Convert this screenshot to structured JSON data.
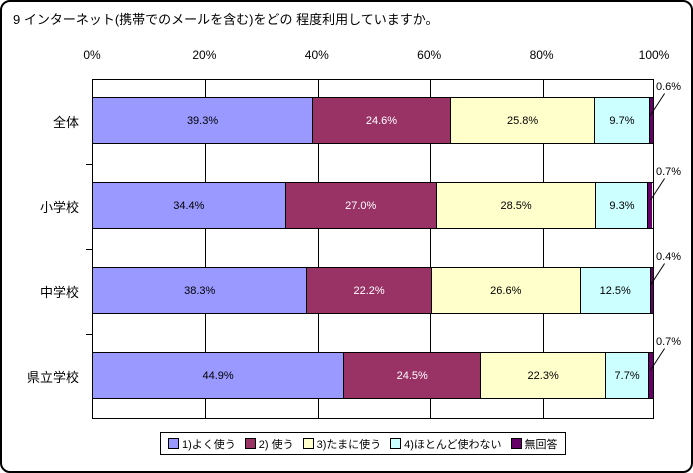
{
  "chart_data": {
    "type": "bar",
    "stacked": true,
    "orientation": "horizontal",
    "title": "9 インターネット(携帯でのメールを含む)をどの 程度利用していますか。",
    "categories": [
      "全体",
      "小学校",
      "中学校",
      "県立学校"
    ],
    "x_tick_labels": [
      "0%",
      "20%",
      "40%",
      "60%",
      "80%",
      "100%"
    ],
    "xlim": [
      0,
      100
    ],
    "grid": true,
    "legend_position": "bottom",
    "series": [
      {
        "name": "1)よく使う",
        "color": "#9999FF",
        "text_color": "#000000",
        "values": [
          39.3,
          34.4,
          38.3,
          44.9
        ],
        "labels": [
          "39.3%",
          "34.4%",
          "38.3%",
          "44.9%"
        ]
      },
      {
        "name": "2) 使う",
        "color": "#993366",
        "text_color": "#FFFFFF",
        "values": [
          24.6,
          27.0,
          22.2,
          24.5
        ],
        "labels": [
          "24.6%",
          "27.0%",
          "22.2%",
          "24.5%"
        ]
      },
      {
        "name": "3)たまに使う",
        "color": "#FFFFCC",
        "text_color": "#000000",
        "values": [
          25.8,
          28.5,
          26.6,
          22.3
        ],
        "labels": [
          "25.8%",
          "28.5%",
          "26.6%",
          "22.3%"
        ]
      },
      {
        "name": "4)ほとんど使わない",
        "color": "#CCFFFF",
        "text_color": "#000000",
        "values": [
          9.7,
          9.3,
          12.5,
          7.7
        ],
        "labels": [
          "9.7%",
          "9.3%",
          "12.5%",
          "7.7%"
        ]
      },
      {
        "name": "無回答",
        "color": "#660066",
        "text_color": "#000000",
        "values": [
          0.6,
          0.7,
          0.4,
          0.7
        ],
        "labels": [
          "0.6%",
          "0.7%",
          "0.4%",
          "0.7%"
        ],
        "label_style": "callout"
      }
    ]
  }
}
